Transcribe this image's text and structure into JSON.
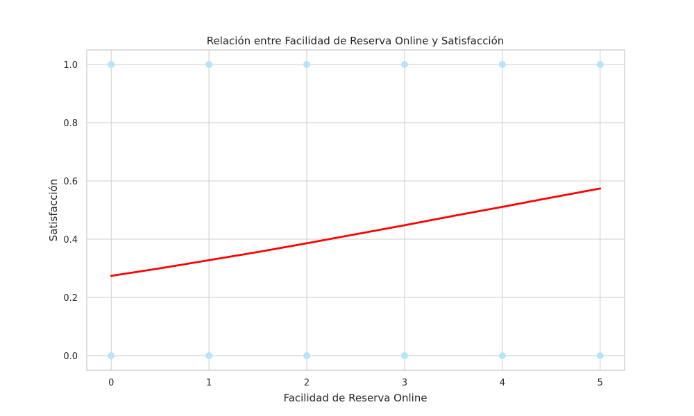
{
  "chart_data": {
    "type": "scatter",
    "title": "Relación entre Facilidad de Reserva Online y Satisfacción",
    "xlabel": "Facilidad de Reserva Online",
    "ylabel": "Satisfacción",
    "xlim": [
      -0.25,
      5.25
    ],
    "ylim": [
      -0.05,
      1.05
    ],
    "xticks": [
      0,
      1,
      2,
      3,
      4,
      5
    ],
    "yticks": [
      0.0,
      0.2,
      0.4,
      0.6,
      0.8,
      1.0
    ],
    "ytick_labels": [
      "0.0",
      "0.2",
      "0.4",
      "0.6",
      "0.8",
      "1.0"
    ],
    "grid": true,
    "series": [
      {
        "type": "scatter",
        "color": "#b3e5fc",
        "points": [
          {
            "x": 0,
            "y": 1
          },
          {
            "x": 1,
            "y": 1
          },
          {
            "x": 2,
            "y": 1
          },
          {
            "x": 3,
            "y": 1
          },
          {
            "x": 4,
            "y": 1
          },
          {
            "x": 5,
            "y": 1
          },
          {
            "x": 0,
            "y": 0
          },
          {
            "x": 1,
            "y": 0
          },
          {
            "x": 2,
            "y": 0
          },
          {
            "x": 3,
            "y": 0
          },
          {
            "x": 4,
            "y": 0
          },
          {
            "x": 5,
            "y": 0
          }
        ]
      },
      {
        "type": "line",
        "color": "#ff0000",
        "points": [
          {
            "x": 0,
            "y": 0.274
          },
          {
            "x": 0.5,
            "y": 0.3
          },
          {
            "x": 1,
            "y": 0.328
          },
          {
            "x": 1.5,
            "y": 0.356
          },
          {
            "x": 2,
            "y": 0.386
          },
          {
            "x": 2.5,
            "y": 0.417
          },
          {
            "x": 3,
            "y": 0.448
          },
          {
            "x": 3.5,
            "y": 0.48
          },
          {
            "x": 4,
            "y": 0.511
          },
          {
            "x": 4.5,
            "y": 0.543
          },
          {
            "x": 5,
            "y": 0.574
          }
        ]
      }
    ]
  }
}
